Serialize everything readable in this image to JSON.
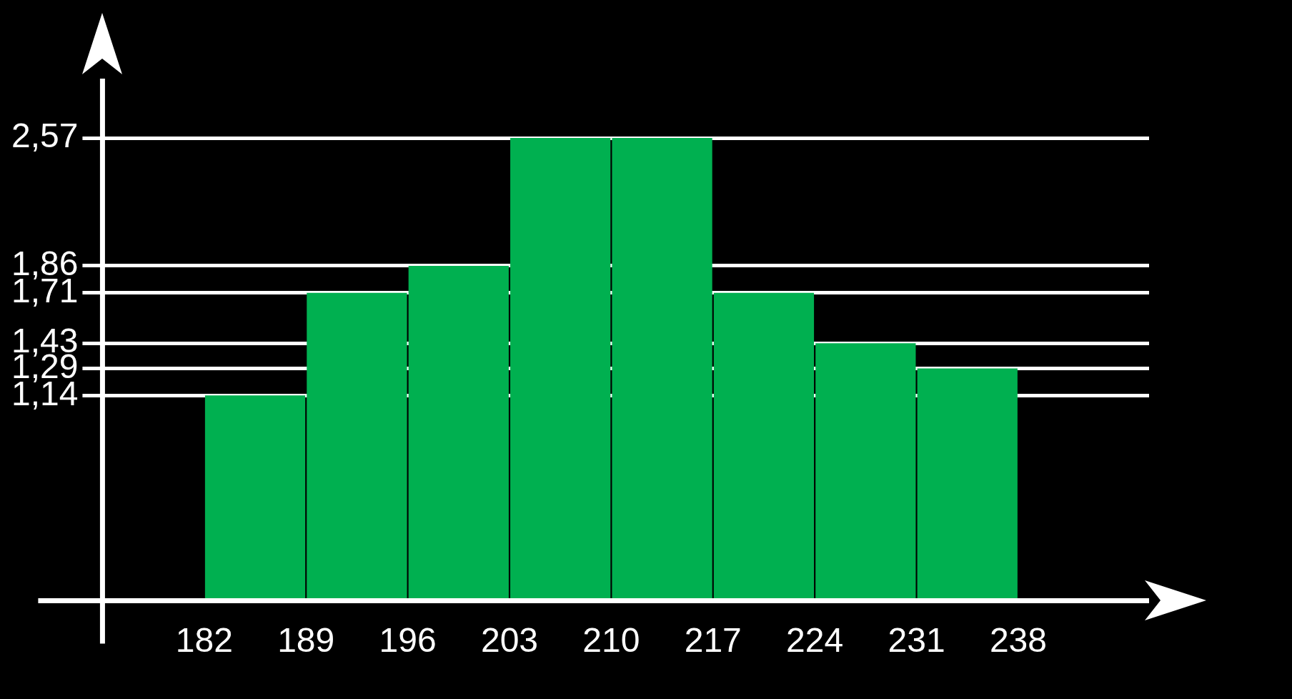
{
  "chart_data": {
    "type": "histogram",
    "bins": [
      182,
      189,
      196,
      203,
      210,
      217,
      224,
      231,
      238
    ],
    "values": [
      1.14,
      1.71,
      1.86,
      2.57,
      2.57,
      1.71,
      1.43,
      1.29
    ],
    "color": "#00b050",
    "xlim": [
      175,
      247
    ],
    "xticks": [
      182,
      189,
      196,
      203,
      210,
      217,
      224,
      231,
      238
    ],
    "ylim": [
      0,
      2.9
    ],
    "yticks": [
      {
        "value": 1.14,
        "label": "1,14"
      },
      {
        "value": 1.29,
        "label": "1,29"
      },
      {
        "value": 1.43,
        "label": "1,43"
      },
      {
        "value": 1.71,
        "label": "1,71"
      },
      {
        "value": 1.86,
        "label": "1,86"
      },
      {
        "value": 2.57,
        "label": "2,57"
      }
    ],
    "grid": "y"
  }
}
